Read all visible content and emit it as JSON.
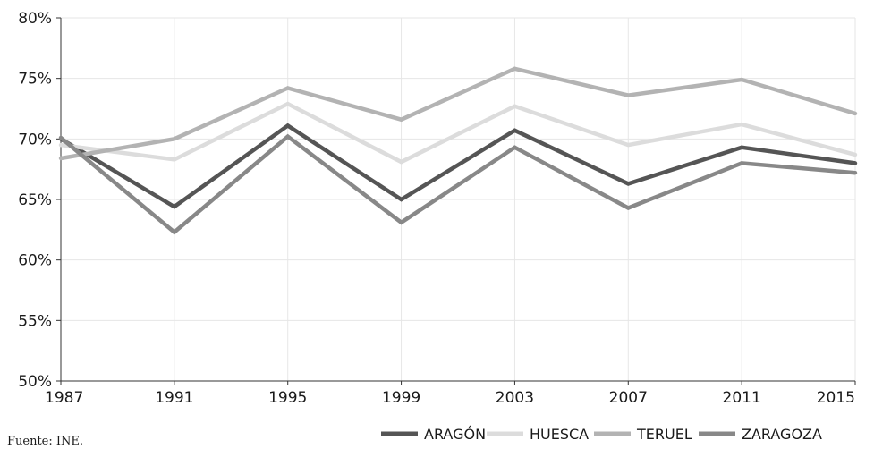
{
  "source_note": "Fuente: INE.",
  "chart_data": {
    "type": "line",
    "x": [
      "1987",
      "1991",
      "1995",
      "1999",
      "2003",
      "2007",
      "2011",
      "2015"
    ],
    "ylim": [
      50,
      80
    ],
    "y_ticks": [
      50,
      55,
      60,
      65,
      70,
      75,
      80
    ],
    "y_tick_format": "%",
    "grid": true,
    "legend_position": "bottom",
    "series": [
      {
        "name": "ARAGÓN",
        "color": "#555555",
        "values": [
          70.0,
          64.4,
          71.1,
          65.0,
          70.7,
          66.3,
          69.3,
          68.0
        ]
      },
      {
        "name": "HUESCA",
        "color": "#dcdcdc",
        "values": [
          69.5,
          68.3,
          72.9,
          68.1,
          72.7,
          69.5,
          71.2,
          68.7
        ]
      },
      {
        "name": "TERUEL",
        "color": "#b3b3b3",
        "values": [
          68.4,
          70.0,
          74.2,
          71.6,
          75.8,
          73.6,
          74.9,
          72.1
        ]
      },
      {
        "name": "ZARAGOZA",
        "color": "#888888",
        "values": [
          70.1,
          62.3,
          70.2,
          63.1,
          69.3,
          64.3,
          68.0,
          67.2
        ]
      }
    ]
  }
}
